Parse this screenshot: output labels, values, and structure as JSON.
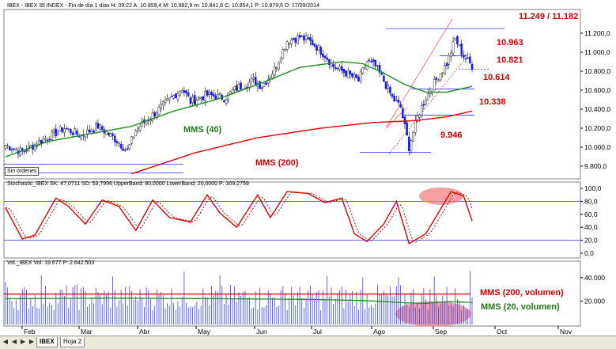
{
  "headers": {
    "price": "IBEX - IBEX 35 INDEX - Fin de día 1 días H: 09:22  A: 10.859,4  M: 10.882,9  m: 10.841,6  C: 10.854,1  P: 10.879,6  D: 17/09/2014",
    "stoch": "Stochastic_IBEX SK: 47,0711  SD: 53,7996  UpperBand: 80,0000  LowerBand: 20,0000  P: 309,2759",
    "vol": "Vol._IBEX  Vol: 19.677  P: 2.642.503"
  },
  "months": [
    "Feb",
    "Mar",
    "Abr",
    "May",
    "Jun",
    "Jul",
    "Ago",
    "Sep",
    "Oct",
    "Nov"
  ],
  "annotations": {
    "lvl_top": "11.249 / 11.182",
    "lvl_10963": "10.963",
    "lvl_10821": "10.821",
    "lvl_10614": "10.614",
    "lvl_10338": "10.338",
    "lvl_9946": "9.946",
    "mms40": "MMS (40)",
    "mms200": "MMS (200)",
    "mms200vol": "MMS (200, volumen)",
    "mms20vol": "MMS (20, volumen)",
    "sin_ordenes": "Sin órdenes"
  },
  "tabs": {
    "t1": "IBEX",
    "t2": "Hoja 2"
  },
  "colors": {
    "bull": "#ffffff",
    "bear": "#1a1aff",
    "mms40": "#1e8c1e",
    "mms200": "#e00000",
    "band": "#3333ff",
    "highlight": "#f08080"
  },
  "chart_data": [
    {
      "type": "candlestick",
      "ylim": [
        9700,
        11400
      ],
      "yticks": [
        "9.800,0",
        "10.000,0",
        "10.200,0",
        "10.400,0",
        "10.600,0",
        "10.800,0",
        "11.000,0",
        "11.200,0"
      ],
      "close_anchor": [
        [
          0,
          10020
        ],
        [
          8,
          9950
        ],
        [
          18,
          10080
        ],
        [
          28,
          10200
        ],
        [
          36,
          10120
        ],
        [
          44,
          10220
        ],
        [
          52,
          10090
        ],
        [
          58,
          9960
        ],
        [
          62,
          10180
        ],
        [
          70,
          10340
        ],
        [
          78,
          10500
        ],
        [
          84,
          10620
        ],
        [
          88,
          10480
        ],
        [
          96,
          10550
        ],
        [
          104,
          10520
        ],
        [
          110,
          10620
        ],
        [
          118,
          10700
        ],
        [
          122,
          10640
        ],
        [
          128,
          10820
        ],
        [
          134,
          11120
        ],
        [
          140,
          11160
        ],
        [
          146,
          11100
        ],
        [
          152,
          10970
        ],
        [
          156,
          10850
        ],
        [
          162,
          10780
        ],
        [
          168,
          10700
        ],
        [
          172,
          10900
        ],
        [
          176,
          10850
        ],
        [
          180,
          10700
        ],
        [
          184,
          10520
        ],
        [
          188,
          10420
        ],
        [
          192,
          10000
        ],
        [
          196,
          10320
        ],
        [
          200,
          10520
        ],
        [
          206,
          10750
        ],
        [
          210,
          10880
        ],
        [
          214,
          11140
        ],
        [
          218,
          10960
        ],
        [
          222,
          10854
        ]
      ],
      "mms40_anchor": [
        [
          0,
          9900
        ],
        [
          20,
          10060
        ],
        [
          40,
          10140
        ],
        [
          60,
          10220
        ],
        [
          80,
          10380
        ],
        [
          100,
          10500
        ],
        [
          120,
          10660
        ],
        [
          140,
          10840
        ],
        [
          160,
          10900
        ],
        [
          170,
          10880
        ],
        [
          180,
          10780
        ],
        [
          190,
          10660
        ],
        [
          200,
          10580
        ],
        [
          210,
          10580
        ],
        [
          222,
          10640
        ]
      ],
      "mms200_anchor": [
        [
          60,
          9720
        ],
        [
          90,
          9940
        ],
        [
          120,
          10100
        ],
        [
          150,
          10200
        ],
        [
          175,
          10260
        ],
        [
          195,
          10280
        ],
        [
          210,
          10320
        ],
        [
          222,
          10380
        ]
      ]
    },
    {
      "type": "line",
      "ylim": [
        -5,
        105
      ],
      "yticks": [
        "0,0",
        "20,0",
        "40,0",
        "60,0",
        "80,0",
        "100,0"
      ],
      "bands": [
        20,
        80
      ],
      "k_anchor": [
        [
          0,
          70
        ],
        [
          8,
          22
        ],
        [
          14,
          28
        ],
        [
          24,
          85
        ],
        [
          30,
          72
        ],
        [
          38,
          45
        ],
        [
          46,
          82
        ],
        [
          54,
          72
        ],
        [
          62,
          35
        ],
        [
          70,
          82
        ],
        [
          78,
          55
        ],
        [
          88,
          48
        ],
        [
          96,
          90
        ],
        [
          102,
          62
        ],
        [
          110,
          40
        ],
        [
          120,
          90
        ],
        [
          126,
          55
        ],
        [
          134,
          95
        ],
        [
          144,
          92
        ],
        [
          152,
          78
        ],
        [
          160,
          85
        ],
        [
          166,
          30
        ],
        [
          172,
          18
        ],
        [
          180,
          45
        ],
        [
          186,
          80
        ],
        [
          192,
          15
        ],
        [
          200,
          30
        ],
        [
          212,
          95
        ],
        [
          218,
          88
        ],
        [
          222,
          50
        ]
      ]
    },
    {
      "type": "bar",
      "ylim": [
        0,
        50000
      ],
      "yticks": [
        "20.000",
        "40.000"
      ],
      "ma200": 26000,
      "ma20_anchor": [
        [
          0,
          22000
        ],
        [
          50,
          22500
        ],
        [
          100,
          22000
        ],
        [
          140,
          21500
        ],
        [
          170,
          20500
        ],
        [
          190,
          18500
        ],
        [
          200,
          18000
        ],
        [
          210,
          19500
        ],
        [
          222,
          18800
        ]
      ]
    }
  ]
}
